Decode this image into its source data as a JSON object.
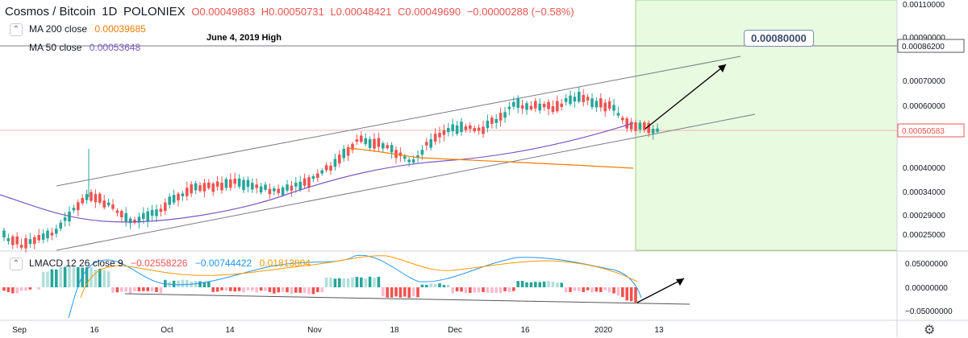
{
  "header": {
    "symbol": "Cosmos / Bitcoin",
    "interval": "1D",
    "exchange": "POLONIEX",
    "open": "O0.00049883",
    "high": "H0.00050731",
    "low": "L0.00048421",
    "close": "C0.00049690",
    "change": "−0.00000288 (−0.58%)"
  },
  "indicators": {
    "ma200_label": "MA 200 close",
    "ma200_value": "0.00039685",
    "ma50_label": "MA 50 close",
    "ma50_value": "0.00053648",
    "lmacd_label": "LMACD 12 26 close 9",
    "lmacd_v1": "−0.02558226",
    "lmacd_v2": "−0.00744422",
    "lmacd_v3": "0.01813804",
    "collapse_icon": "chevron-up-icon"
  },
  "annotations": {
    "high_note": "June 4, 2019 High",
    "target": "0.00080000",
    "settings_icon": "gear-icon"
  },
  "colors": {
    "up": "#26a69a",
    "down": "#ef5350",
    "ma200": "#f57c00",
    "ma50": "#7e57c2",
    "macd_line": "#2196f3",
    "signal_line": "#ff9800",
    "target_zone": "#e8fadf"
  },
  "chart_data": {
    "type": "candlestick",
    "price_ticks": [
      "0.00110000",
      "0.00090000",
      "0.00070000",
      "0.00060000",
      "0.00040000",
      "0.00034000",
      "0.00029000",
      "0.00025000"
    ],
    "price_badges": [
      "0.00086200",
      "0.00050583"
    ],
    "macd_ticks": [
      "0.05000000",
      "0.00000000",
      "-0.05000000"
    ],
    "x_ticks": [
      "Sep",
      "16",
      "Oct",
      "14",
      "Nov",
      "18",
      "Dec",
      "16",
      "2020",
      "13"
    ],
    "x_tick_positions": [
      0.02,
      0.0975,
      0.1725,
      0.2375,
      0.325,
      0.4075,
      0.47,
      0.5425,
      0.6233,
      0.6808
    ],
    "candles_approx": "daily ATOM/BTC candles from Sep 2019 to Jan 2020, channel rising from ~0.00025 to ~0.00060",
    "ma200": "declining from ~0.00045 to 0.00039685",
    "ma50": "rising from ~0.00033 to 0.00053648",
    "target_price": 0.0008
  }
}
